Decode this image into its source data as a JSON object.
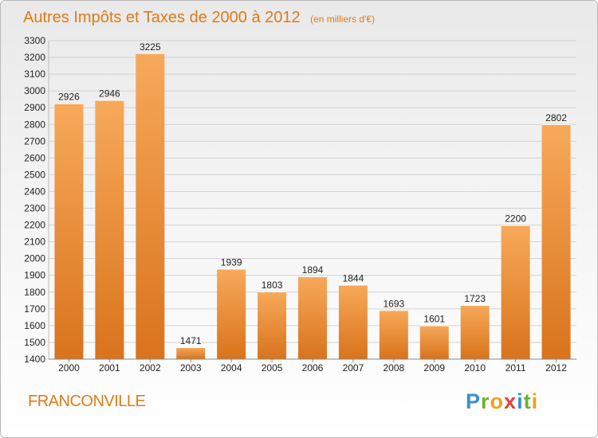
{
  "title": "Autres Impôts et Taxes de 2000 à 2012",
  "subtitle": "(en milliers d'€)",
  "city": "FRANCONVILLE",
  "logo": {
    "text": "Proxiti",
    "letters": [
      {
        "char": "P",
        "color": "#3a8fd1"
      },
      {
        "char": "r",
        "color": "#6ab42d"
      },
      {
        "char": "o",
        "color": "#f0a01e"
      },
      {
        "char": "x",
        "color": "#e2403c"
      },
      {
        "char": "i",
        "color": "#3a8fd1"
      },
      {
        "char": "t",
        "color": "#6ab42d"
      },
      {
        "char": "i",
        "color": "#f0a01e"
      }
    ]
  },
  "colors": {
    "accent": "#e07a17",
    "bar_light": "#f7a95a",
    "bar_dark": "#d9731c",
    "grid": "#d2d2d2"
  },
  "chart_data": {
    "type": "bar",
    "categories": [
      "2000",
      "2001",
      "2002",
      "2003",
      "2004",
      "2005",
      "2006",
      "2007",
      "2008",
      "2009",
      "2010",
      "2011",
      "2012"
    ],
    "values": [
      2926,
      2946,
      3225,
      1471,
      1939,
      1803,
      1894,
      1844,
      1693,
      1601,
      1723,
      2200,
      2802
    ],
    "ylim": [
      1400,
      3300
    ],
    "yticks": [
      1400,
      1500,
      1600,
      1700,
      1800,
      1900,
      2000,
      2100,
      2200,
      2300,
      2400,
      2500,
      2600,
      2700,
      2800,
      2900,
      3000,
      3100,
      3200,
      3300
    ],
    "grid": true,
    "xlabel": "",
    "ylabel": ""
  }
}
